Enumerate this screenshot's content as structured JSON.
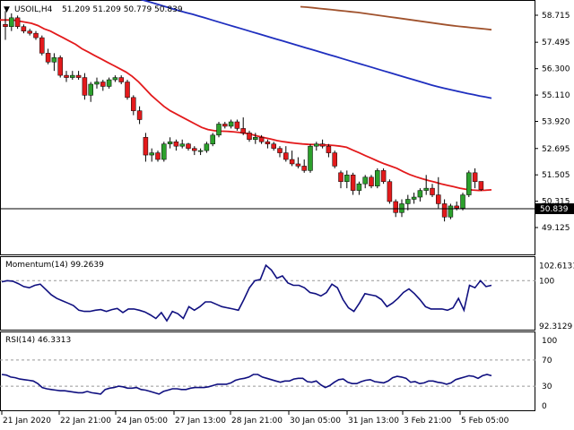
{
  "header": {
    "symbol_label": "USOIL,H4",
    "ohlc": "51.209 51.209 50.779 50.839"
  },
  "price_axis": {
    "ticks": [
      "58.715",
      "57.495",
      "56.300",
      "55.110",
      "53.920",
      "52.695",
      "51.505",
      "50.315",
      "49.125"
    ],
    "current_price": "50.839"
  },
  "time_axis": {
    "ticks": [
      "21 Jan 2020",
      "22 Jan 21:00",
      "24 Jan 05:00",
      "27 Jan 13:00",
      "28 Jan 21:00",
      "30 Jan 05:00",
      "31 Jan 13:00",
      "3 Feb 21:00",
      "5 Feb 05:00"
    ]
  },
  "momentum": {
    "title": "Momentum(14) 99.2639",
    "ticks": [
      "102.6131",
      "100",
      "92.3129"
    ]
  },
  "rsi": {
    "title": "RSI(14) 46.3313",
    "ticks": [
      "100",
      "70",
      "30",
      "0"
    ]
  },
  "colors": {
    "bull": "#2ca02c",
    "bear": "#e31a1c",
    "ma_fast": "#e31a1c",
    "ma_mid": "#1f2fbf",
    "ma_slow": "#a0522d",
    "indicator": "#101080"
  },
  "chart_data": [
    {
      "type": "candlestick",
      "ylim": [
        49.125,
        58.715
      ],
      "current_price": 50.839,
      "candles": [
        [
          58.3,
          58.9,
          57.6,
          58.2
        ],
        [
          58.2,
          58.8,
          58.0,
          58.6
        ],
        [
          58.6,
          58.7,
          58.1,
          58.2
        ],
        [
          58.2,
          58.3,
          57.9,
          58.0
        ],
        [
          58.0,
          58.1,
          57.8,
          57.9
        ],
        [
          57.9,
          58.0,
          57.6,
          57.7
        ],
        [
          57.7,
          57.8,
          56.9,
          57.0
        ],
        [
          57.0,
          57.2,
          56.5,
          56.6
        ],
        [
          56.6,
          57.0,
          56.2,
          56.8
        ],
        [
          56.8,
          56.9,
          55.9,
          56.0
        ],
        [
          56.0,
          56.2,
          55.7,
          55.9
        ],
        [
          55.9,
          56.2,
          55.8,
          56.0
        ],
        [
          56.0,
          56.2,
          55.8,
          55.9
        ],
        [
          55.9,
          56.1,
          54.9,
          55.1
        ],
        [
          55.1,
          55.7,
          54.8,
          55.6
        ],
        [
          55.6,
          55.9,
          55.4,
          55.7
        ],
        [
          55.7,
          55.8,
          55.3,
          55.5
        ],
        [
          55.5,
          55.9,
          55.4,
          55.8
        ],
        [
          55.8,
          56.0,
          55.7,
          55.9
        ],
        [
          55.9,
          56.0,
          55.6,
          55.7
        ],
        [
          55.7,
          55.8,
          54.9,
          55.0
        ],
        [
          55.0,
          55.1,
          54.2,
          54.4
        ],
        [
          54.4,
          54.6,
          53.8,
          54.0
        ],
        [
          53.2,
          53.4,
          52.1,
          52.4
        ],
        [
          52.4,
          52.7,
          52.1,
          52.5
        ],
        [
          52.5,
          52.6,
          52.1,
          52.2
        ],
        [
          52.2,
          53.0,
          52.1,
          52.9
        ],
        [
          52.9,
          53.2,
          52.7,
          53.0
        ],
        [
          53.0,
          53.1,
          52.6,
          52.8
        ],
        [
          52.8,
          53.1,
          52.7,
          52.9
        ],
        [
          52.9,
          52.95,
          52.6,
          52.7
        ],
        [
          52.7,
          52.8,
          52.4,
          52.6
        ],
        [
          52.6,
          52.7,
          52.4,
          52.6
        ],
        [
          52.6,
          53.0,
          52.5,
          52.9
        ],
        [
          52.9,
          53.4,
          52.8,
          53.3
        ],
        [
          53.3,
          53.9,
          53.2,
          53.8
        ],
        [
          53.8,
          53.9,
          53.6,
          53.7
        ],
        [
          53.7,
          54.0,
          53.6,
          53.9
        ],
        [
          53.9,
          54.0,
          53.5,
          53.6
        ],
        [
          53.6,
          54.1,
          53.3,
          53.4
        ],
        [
          53.4,
          53.5,
          53.0,
          53.1
        ],
        [
          53.1,
          53.4,
          52.9,
          53.2
        ],
        [
          53.2,
          53.3,
          52.9,
          53.0
        ],
        [
          53.0,
          53.1,
          52.7,
          52.9
        ],
        [
          52.9,
          53.0,
          52.6,
          52.7
        ],
        [
          52.7,
          52.8,
          52.3,
          52.5
        ],
        [
          52.5,
          52.8,
          52.1,
          52.2
        ],
        [
          52.2,
          52.6,
          51.9,
          52.0
        ],
        [
          52.0,
          52.3,
          51.8,
          51.9
        ],
        [
          51.9,
          52.2,
          51.6,
          51.7
        ],
        [
          51.7,
          52.9,
          51.6,
          52.8
        ],
        [
          52.8,
          53.0,
          52.6,
          52.9
        ],
        [
          52.9,
          53.1,
          52.7,
          52.8
        ],
        [
          52.8,
          52.9,
          52.3,
          52.5
        ],
        [
          52.5,
          52.6,
          51.8,
          51.9
        ],
        [
          51.6,
          51.7,
          50.9,
          51.2
        ],
        [
          51.2,
          51.7,
          50.9,
          51.5
        ],
        [
          51.5,
          51.6,
          50.6,
          50.8
        ],
        [
          50.8,
          51.2,
          50.6,
          51.1
        ],
        [
          51.1,
          51.5,
          50.9,
          51.4
        ],
        [
          51.4,
          51.5,
          50.9,
          51.0
        ],
        [
          51.0,
          51.8,
          50.9,
          51.7
        ],
        [
          51.7,
          51.8,
          51.1,
          51.2
        ],
        [
          51.2,
          51.3,
          50.2,
          50.3
        ],
        [
          50.3,
          50.4,
          49.6,
          49.8
        ],
        [
          49.8,
          50.4,
          49.6,
          50.2
        ],
        [
          50.2,
          50.6,
          49.9,
          50.4
        ],
        [
          50.4,
          50.7,
          50.2,
          50.5
        ],
        [
          50.5,
          50.9,
          50.3,
          50.8
        ],
        [
          50.8,
          51.5,
          50.6,
          50.9
        ],
        [
          50.9,
          51.1,
          50.5,
          50.6
        ],
        [
          50.6,
          51.4,
          50.0,
          50.2
        ],
        [
          50.2,
          50.4,
          49.4,
          49.6
        ],
        [
          49.6,
          50.2,
          49.5,
          50.1
        ],
        [
          50.1,
          50.3,
          49.9,
          50.0
        ],
        [
          50.0,
          50.7,
          49.9,
          50.6
        ],
        [
          50.6,
          51.7,
          50.5,
          51.6
        ],
        [
          51.6,
          51.8,
          50.9,
          51.2
        ],
        [
          51.209,
          51.209,
          50.779,
          50.839
        ]
      ],
      "ma_fast": [
        58.5,
        58.5,
        58.5,
        58.45,
        58.4,
        58.35,
        58.25,
        58.1,
        58.0,
        57.85,
        57.7,
        57.55,
        57.4,
        57.2,
        57.05,
        56.9,
        56.75,
        56.6,
        56.45,
        56.3,
        56.15,
        55.95,
        55.7,
        55.4,
        55.1,
        54.85,
        54.6,
        54.4,
        54.25,
        54.1,
        53.95,
        53.8,
        53.65,
        53.55,
        53.5,
        53.48,
        53.47,
        53.45,
        53.42,
        53.38,
        53.32,
        53.25,
        53.18,
        53.12,
        53.05,
        53.0,
        52.96,
        52.93,
        52.9,
        52.88,
        52.87,
        52.86,
        52.85,
        52.83,
        52.8,
        52.75,
        52.62,
        52.5,
        52.37,
        52.25,
        52.12,
        52.0,
        51.9,
        51.8,
        51.65,
        51.52,
        51.42,
        51.33,
        51.25,
        51.18,
        51.1,
        51.03,
        50.97,
        50.9,
        50.85,
        50.82,
        50.8,
        50.81,
        50.83
      ],
      "ma_mid": [
        59.5,
        59.45,
        59.38,
        59.3,
        59.22,
        59.14,
        59.06,
        58.98,
        58.9,
        58.83,
        58.76,
        58.68,
        58.6,
        58.52,
        58.44,
        58.36,
        58.28,
        58.2,
        58.12,
        58.04,
        57.96,
        57.88,
        57.8,
        57.72,
        57.64,
        57.56,
        57.48,
        57.4,
        57.32,
        57.24,
        57.16,
        57.08,
        57.0,
        56.92,
        56.84,
        56.76,
        56.68,
        56.6,
        56.52,
        56.44,
        56.36,
        56.28,
        56.2,
        56.12,
        56.04,
        55.96,
        55.88,
        55.8,
        55.72,
        55.64,
        55.56,
        55.49,
        55.42,
        55.36,
        55.3,
        55.24,
        55.18,
        55.13,
        55.07,
        55.02,
        54.97
      ],
      "ma_slow": [
        59.1,
        59.08,
        59.05,
        59.02,
        58.99,
        58.96,
        58.93,
        58.9,
        58.87,
        58.84,
        58.8,
        58.76,
        58.72,
        58.68,
        58.64,
        58.6,
        58.56,
        58.52,
        58.48,
        58.44,
        58.4,
        58.36,
        58.32,
        58.28,
        58.24,
        58.21,
        58.18,
        58.15,
        58.12,
        58.09,
        58.06
      ]
    },
    {
      "type": "line",
      "title": "Momentum(14) 99.2639",
      "ylim": [
        92.3129,
        102.6131
      ],
      "reference": 100,
      "values": [
        99.8,
        100.0,
        99.9,
        99.5,
        99.0,
        98.8,
        99.2,
        99.4,
        98.5,
        97.6,
        97.0,
        96.6,
        96.2,
        95.8,
        95.0,
        94.8,
        94.8,
        95.0,
        95.1,
        94.8,
        95.1,
        95.3,
        94.6,
        95.2,
        95.2,
        95.0,
        94.7,
        94.2,
        93.6,
        94.6,
        93.2,
        94.8,
        94.4,
        93.6,
        95.6,
        95.0,
        95.6,
        96.4,
        96.4,
        96.0,
        95.6,
        95.4,
        95.2,
        95.0,
        96.8,
        98.8,
        100.0,
        100.2,
        102.6,
        101.8,
        100.4,
        100.8,
        99.6,
        99.2,
        99.2,
        98.8,
        98.0,
        97.8,
        97.4,
        98.0,
        99.4,
        98.8,
        96.8,
        95.4,
        94.8,
        96.2,
        97.8,
        97.6,
        97.4,
        96.8,
        95.6,
        96.2,
        97.0,
        98.0,
        98.6,
        97.8,
        96.8,
        95.6,
        95.2,
        95.2,
        95.2,
        95.0,
        95.4,
        97.0,
        95.0,
        99.2,
        98.8,
        100.0,
        99.0,
        99.2
      ]
    },
    {
      "type": "line",
      "title": "RSI(14) 46.3313",
      "ylim": [
        0,
        100
      ],
      "levels": [
        70,
        30
      ],
      "values": [
        48,
        47,
        44,
        43,
        41,
        40,
        39,
        38,
        34,
        28,
        26,
        25,
        24,
        23,
        23,
        22,
        21,
        20,
        20,
        22,
        20,
        19,
        18,
        25,
        27,
        28,
        30,
        29,
        27,
        27,
        28,
        25,
        24,
        22,
        20,
        18,
        22,
        24,
        26,
        26,
        25,
        25,
        27,
        28,
        28,
        28,
        29,
        31,
        33,
        33,
        33,
        35,
        39,
        41,
        42,
        44,
        48,
        48,
        44,
        42,
        40,
        38,
        36,
        38,
        38,
        41,
        42,
        42,
        37,
        36,
        38,
        32,
        28,
        31,
        36,
        40,
        41,
        36,
        34,
        34,
        37,
        39,
        40,
        37,
        36,
        35,
        38,
        43,
        45,
        44,
        42,
        36,
        37,
        34,
        35,
        38,
        38,
        36,
        35,
        33,
        35,
        40,
        42,
        44,
        46,
        45,
        42,
        46,
        48,
        46
      ]
    }
  ]
}
